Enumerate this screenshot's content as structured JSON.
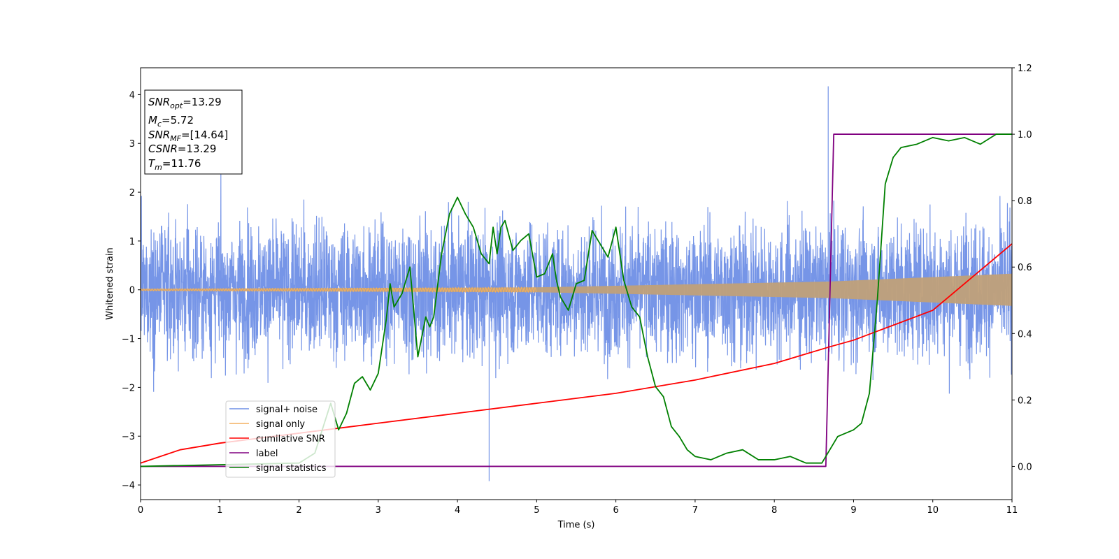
{
  "chart_data": {
    "type": "line",
    "xlabel": "Time (s)",
    "ylabel": "Whitened strain",
    "xlim": [
      0,
      11
    ],
    "ylim": [
      -4.3,
      4.55
    ],
    "y2lim": [
      -0.1,
      1.2
    ],
    "x_ticks": [
      "0",
      "1",
      "2",
      "3",
      "4",
      "5",
      "6",
      "7",
      "8",
      "9",
      "10",
      "11"
    ],
    "y_ticks": [
      "−4",
      "−3",
      "−2",
      "−1",
      "0",
      "1",
      "2",
      "3",
      "4"
    ],
    "y2_ticks": [
      "0.0",
      "0.2",
      "0.4",
      "0.6",
      "0.8",
      "1.0",
      "1.2"
    ],
    "grid": false,
    "legend_position": "lower-left",
    "colors": {
      "signal_noise": "#6f8fe6",
      "signal_only": "#f4b060",
      "cumulative_snr": "#ff0000",
      "label": "#800080",
      "signal_statistics": "#008000"
    },
    "info_box": {
      "snr_opt": "13.29",
      "mc": "5.72",
      "snr_mf": "[14.64]",
      "csnr": "13.29",
      "tm": "11.76"
    },
    "series": [
      {
        "name": "signal+ noise",
        "axis": "left",
        "description_values": {
          "typical_min": -2.2,
          "typical_max": 2.2,
          "peak_max": 4.17,
          "peak_min": -3.92
        }
      },
      {
        "name": "signal only",
        "axis": "left",
        "amplitude_envelope": {
          "x": [
            0,
            5,
            8.7,
            11
          ],
          "y": [
            0.02,
            0.05,
            0.17,
            0.33
          ]
        }
      },
      {
        "name": "cumilative SNR",
        "axis": "right",
        "x": [
          0,
          0.5,
          1,
          2,
          3,
          4,
          5,
          6,
          7,
          8,
          8.7,
          9,
          10,
          11
        ],
        "y": [
          0.01,
          0.05,
          0.07,
          0.1,
          0.13,
          0.16,
          0.19,
          0.22,
          0.26,
          0.31,
          0.36,
          0.38,
          0.47,
          0.67
        ]
      },
      {
        "name": "label",
        "axis": "right",
        "x": [
          0,
          8.65,
          8.75,
          11
        ],
        "y": [
          0,
          0,
          1,
          1
        ]
      },
      {
        "name": "signal statistics",
        "axis": "right",
        "x": [
          0,
          2.0,
          2.2,
          2.4,
          2.5,
          2.6,
          2.7,
          2.8,
          2.9,
          3.0,
          3.1,
          3.15,
          3.2,
          3.3,
          3.4,
          3.5,
          3.6,
          3.65,
          3.7,
          3.8,
          3.9,
          4.0,
          4.1,
          4.2,
          4.3,
          4.4,
          4.45,
          4.5,
          4.55,
          4.6,
          4.7,
          4.8,
          4.9,
          5.0,
          5.1,
          5.2,
          5.25,
          5.3,
          5.4,
          5.5,
          5.6,
          5.7,
          5.8,
          5.9,
          6.0,
          6.1,
          6.2,
          6.3,
          6.4,
          6.5,
          6.6,
          6.7,
          6.8,
          6.9,
          7.0,
          7.2,
          7.4,
          7.6,
          7.8,
          8.0,
          8.2,
          8.4,
          8.6,
          8.8,
          8.9,
          9.0,
          9.1,
          9.2,
          9.3,
          9.4,
          9.5,
          9.6,
          9.8,
          10.0,
          10.2,
          10.4,
          10.6,
          10.8,
          11.0
        ],
        "y": [
          0.0,
          0.01,
          0.04,
          0.19,
          0.11,
          0.16,
          0.25,
          0.27,
          0.23,
          0.28,
          0.44,
          0.55,
          0.48,
          0.52,
          0.6,
          0.33,
          0.45,
          0.42,
          0.45,
          0.64,
          0.76,
          0.81,
          0.76,
          0.72,
          0.64,
          0.61,
          0.72,
          0.64,
          0.72,
          0.74,
          0.65,
          0.68,
          0.7,
          0.57,
          0.58,
          0.64,
          0.56,
          0.51,
          0.47,
          0.55,
          0.56,
          0.71,
          0.67,
          0.63,
          0.72,
          0.56,
          0.48,
          0.45,
          0.33,
          0.24,
          0.21,
          0.12,
          0.09,
          0.05,
          0.03,
          0.02,
          0.04,
          0.05,
          0.02,
          0.02,
          0.03,
          0.01,
          0.01,
          0.09,
          0.1,
          0.11,
          0.13,
          0.22,
          0.5,
          0.85,
          0.93,
          0.96,
          0.97,
          0.99,
          0.98,
          0.99,
          0.97,
          1.0,
          1.0
        ]
      }
    ]
  }
}
